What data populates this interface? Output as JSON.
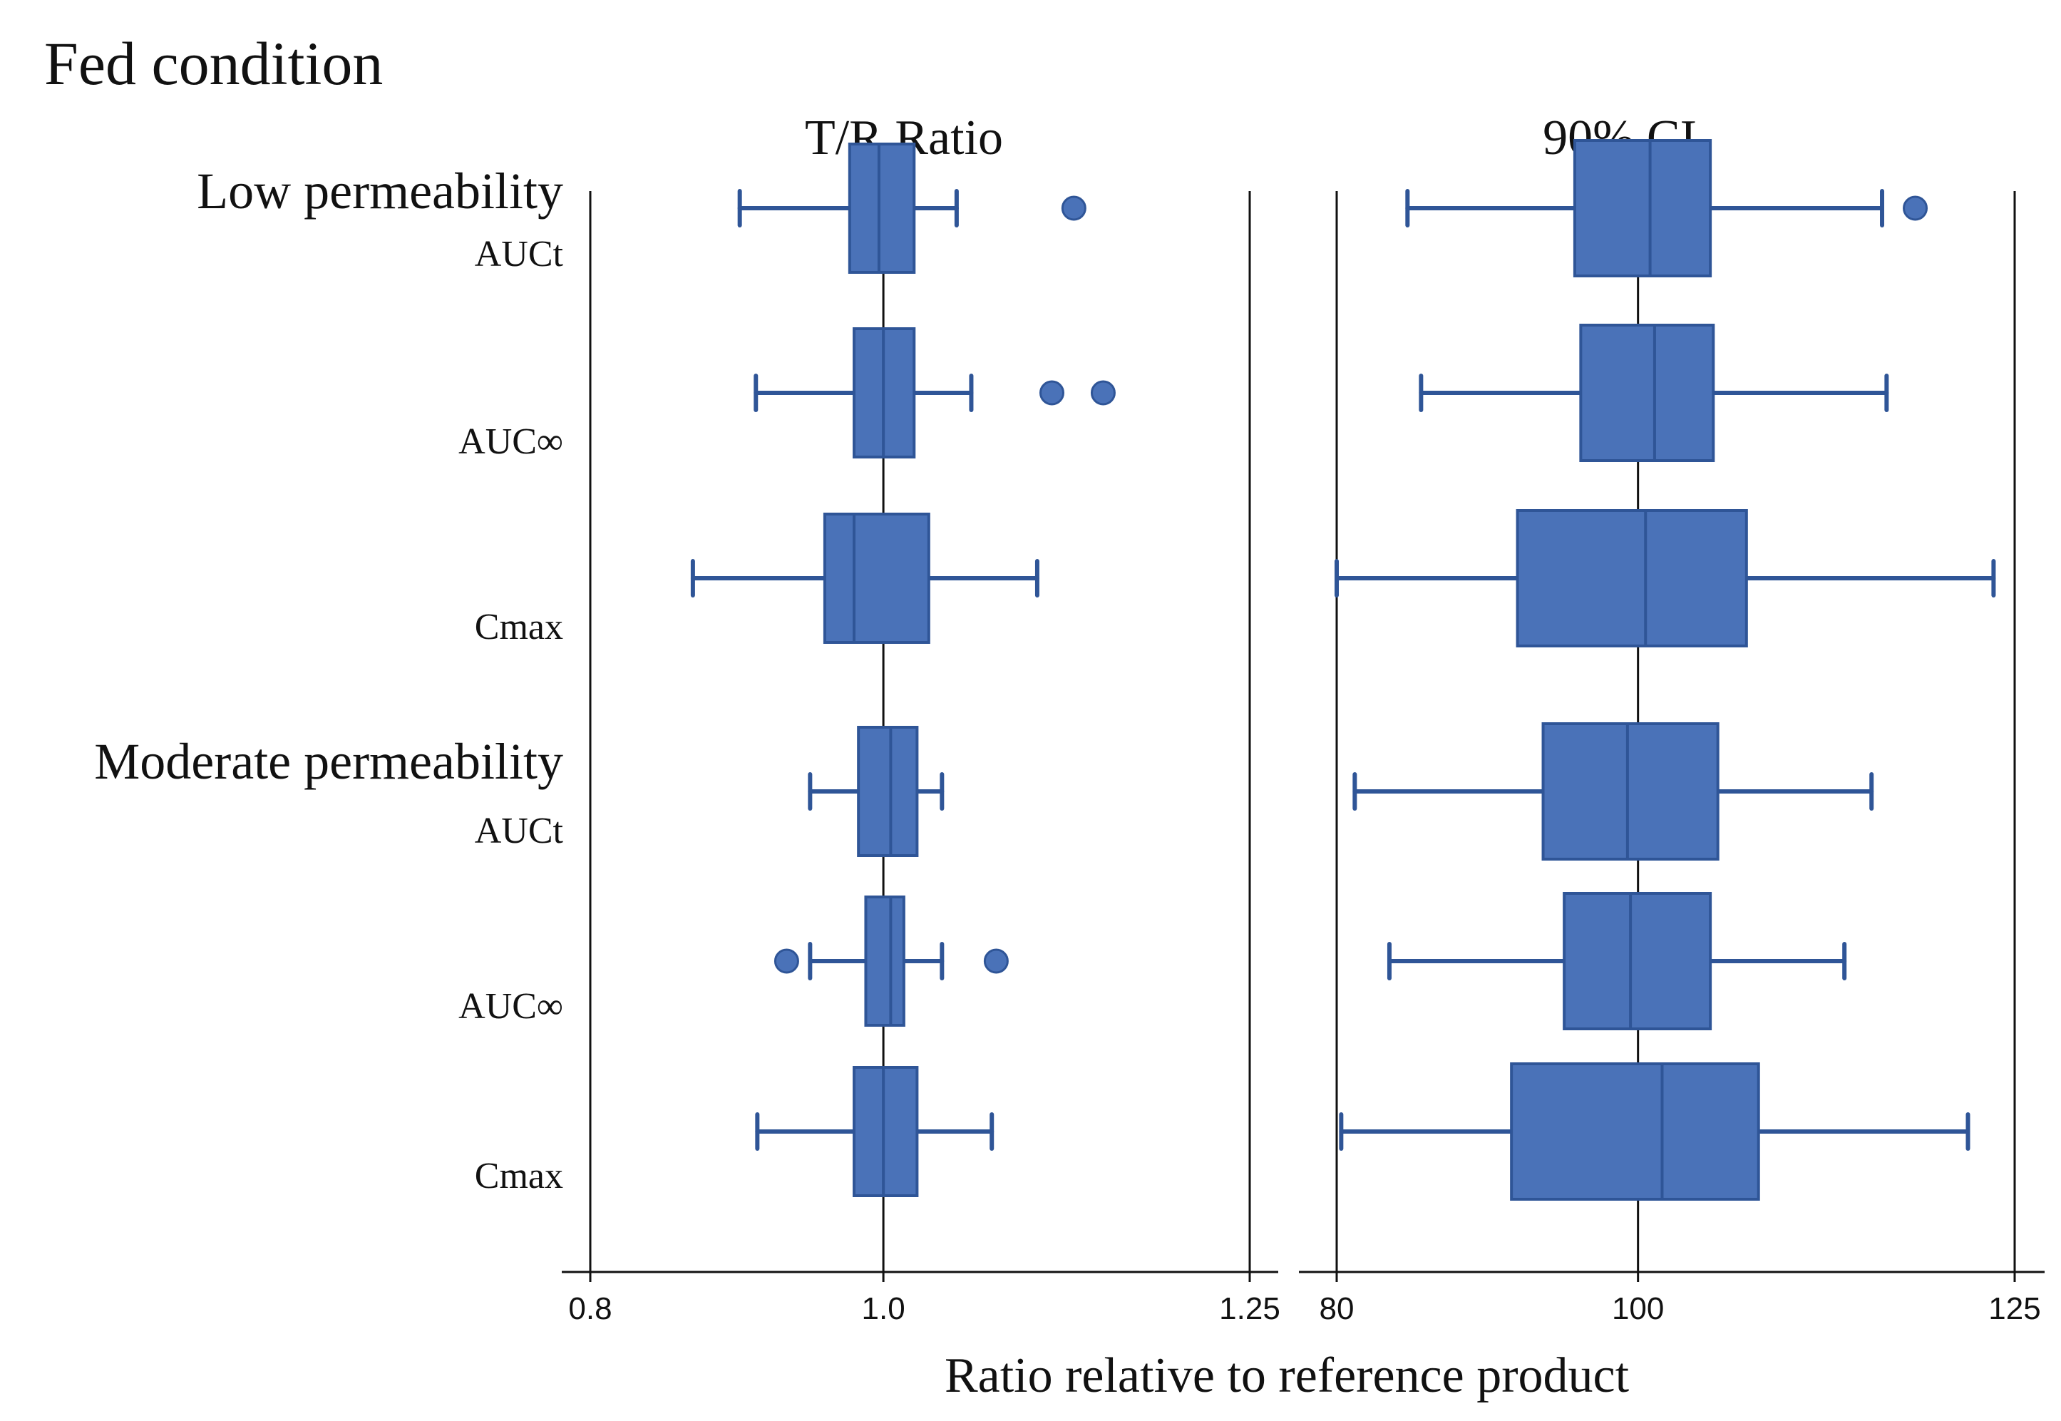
{
  "chart_data": {
    "type": "boxplot",
    "title": "Fed condition",
    "xlabel": "Ratio relative to reference product",
    "groups": [
      {
        "name": "Low permeability",
        "items": [
          "AUCt",
          "AUC∞",
          "Cmax"
        ]
      },
      {
        "name": "Moderate permeability",
        "items": [
          "AUCt",
          "AUC∞",
          "Cmax"
        ]
      }
    ],
    "panels": [
      {
        "name": "T/R Ratio",
        "xlim": [
          0.8,
          1.25
        ],
        "ticks": [
          0.8,
          1.0,
          1.25
        ],
        "tick_labels": [
          "0.8",
          "1.0",
          "1.25"
        ],
        "reference_lines": [
          0.8,
          1.0,
          1.25
        ],
        "boxes": [
          {
            "group": "Low permeability",
            "item": "AUCt",
            "whisker_low": 0.902,
            "q1": 0.977,
            "median": 0.997,
            "q3": 1.021,
            "whisker_high": 1.05,
            "outliers": [
              1.13
            ]
          },
          {
            "group": "Low permeability",
            "item": "AUC∞",
            "whisker_low": 0.913,
            "q1": 0.98,
            "median": 1.0,
            "q3": 1.021,
            "whisker_high": 1.06,
            "outliers": [
              1.115,
              1.15
            ]
          },
          {
            "group": "Low permeability",
            "item": "Cmax",
            "whisker_low": 0.87,
            "q1": 0.96,
            "median": 0.98,
            "q3": 1.031,
            "whisker_high": 1.105,
            "outliers": []
          },
          {
            "group": "Moderate permeability",
            "item": "AUCt",
            "whisker_low": 0.95,
            "q1": 0.983,
            "median": 1.005,
            "q3": 1.023,
            "whisker_high": 1.04,
            "outliers": []
          },
          {
            "group": "Moderate permeability",
            "item": "AUC∞",
            "whisker_low": 0.95,
            "q1": 0.988,
            "median": 1.005,
            "q3": 1.014,
            "whisker_high": 1.04,
            "outliers": [
              0.934,
              1.077
            ]
          },
          {
            "group": "Moderate permeability",
            "item": "Cmax",
            "whisker_low": 0.914,
            "q1": 0.98,
            "median": 1.0,
            "q3": 1.023,
            "whisker_high": 1.074,
            "outliers": []
          }
        ]
      },
      {
        "name": "90% CI",
        "xlim": [
          80,
          125
        ],
        "ticks": [
          80,
          100,
          125
        ],
        "tick_labels": [
          "80",
          "100",
          "125"
        ],
        "reference_lines": [
          80,
          100,
          125
        ],
        "boxes": [
          {
            "group": "Low permeability",
            "item": "AUCt",
            "whisker_low": 84.7,
            "q1": 95.8,
            "median": 100.8,
            "q3": 104.8,
            "whisker_high": 116.2,
            "outliers": [
              118.4
            ]
          },
          {
            "group": "Low permeability",
            "item": "AUC∞",
            "whisker_low": 85.6,
            "q1": 96.2,
            "median": 101.1,
            "q3": 105.0,
            "whisker_high": 116.5,
            "outliers": []
          },
          {
            "group": "Low permeability",
            "item": "Cmax",
            "whisker_low": 80.0,
            "q1": 92.0,
            "median": 100.5,
            "q3": 107.2,
            "whisker_high": 123.6,
            "outliers": []
          },
          {
            "group": "Moderate permeability",
            "item": "AUCt",
            "whisker_low": 81.2,
            "q1": 93.7,
            "median": 99.3,
            "q3": 105.3,
            "whisker_high": 115.5,
            "outliers": []
          },
          {
            "group": "Moderate permeability",
            "item": "AUC∞",
            "whisker_low": 83.5,
            "q1": 95.1,
            "median": 99.5,
            "q3": 104.8,
            "whisker_high": 113.7,
            "outliers": []
          },
          {
            "group": "Moderate permeability",
            "item": "Cmax",
            "whisker_low": 80.3,
            "q1": 91.6,
            "median": 101.6,
            "q3": 108.0,
            "whisker_high": 121.9,
            "outliers": []
          }
        ]
      }
    ]
  },
  "colors": {
    "box_fill": "#4a72b8",
    "box_stroke": "#2f5597",
    "axis": "#111111"
  }
}
